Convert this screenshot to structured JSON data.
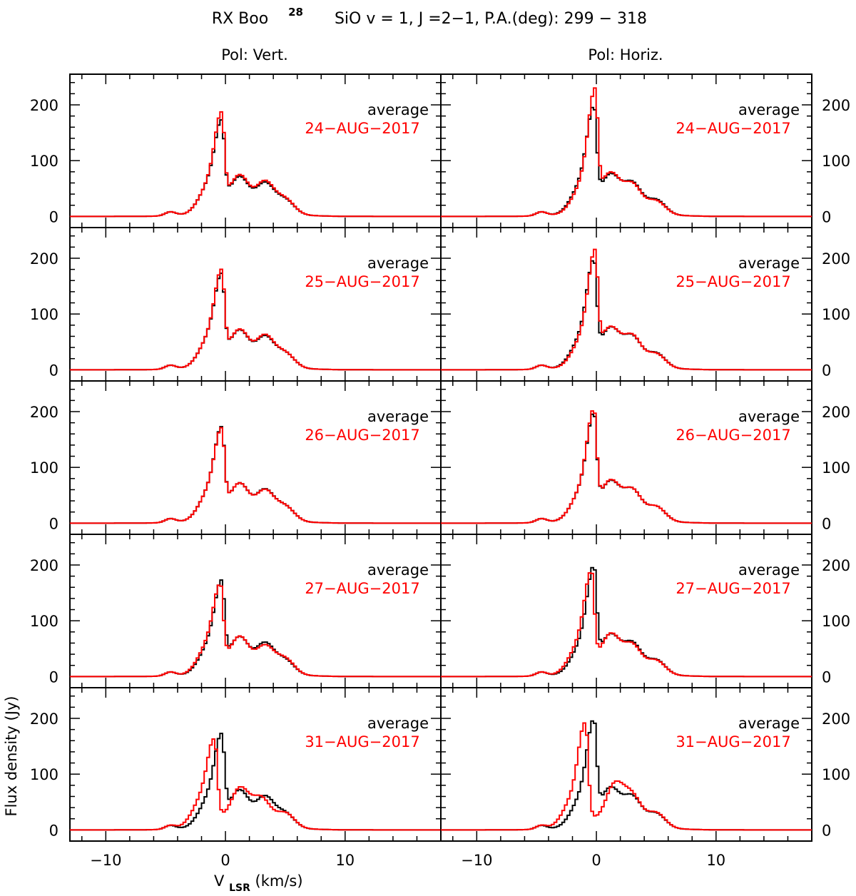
{
  "title": {
    "prefix": "RX Boo",
    "isotope": "28",
    "rest": "SiO v = 1, J =2−1, P.A.(deg): 299 − 318"
  },
  "column_titles": [
    "Pol: Vert.",
    "Pol: Horiz."
  ],
  "y_axis_label": "Flux density (Jy)",
  "x_axis_label": {
    "main": "V",
    "sub": "LSR",
    "unit": "(km/s)"
  },
  "colors": {
    "average": "#000000",
    "daily": "#ff0000"
  },
  "chart_data": {
    "type": "line",
    "layout": "grid 5 rows x 2 columns, shared axes",
    "xlim": [
      -13,
      18
    ],
    "ylim": [
      -20,
      255
    ],
    "x_ticks_labeled": [
      "−10",
      "0",
      "10"
    ],
    "y_ticks_labeled": [
      "0",
      "100",
      "200"
    ],
    "right_tick_labels_visible": [
      "0",
      "100",
      "200"
    ],
    "grid": false,
    "legend": "top-right text inside each panel",
    "panels": [
      {
        "column": "Pol: Vert.",
        "legend": [
          "average",
          "24-AUG-2017"
        ],
        "average": {
          "peak_x": -0.3,
          "peak_y": 178,
          "secondary": [
            [
              1.2,
              65
            ],
            [
              3.3,
              55
            ],
            [
              5.0,
              27
            ]
          ]
        },
        "daily": {
          "peak_x": -0.3,
          "peak_y": 192,
          "secondary": [
            [
              1.2,
              68
            ],
            [
              3.3,
              58
            ],
            [
              5.0,
              28
            ]
          ]
        }
      },
      {
        "column": "Pol: Horiz.",
        "legend": [
          "average",
          "24-AUG-2017"
        ],
        "average": {
          "peak_x": -0.2,
          "peak_y": 201,
          "secondary": [
            [
              1.2,
              68
            ],
            [
              3.0,
              55
            ],
            [
              5.0,
              27
            ]
          ]
        },
        "daily": {
          "peak_x": -0.1,
          "peak_y": 229,
          "secondary": [
            [
              1.2,
              70
            ],
            [
              3.0,
              53
            ],
            [
              5.0,
              25
            ]
          ]
        }
      },
      {
        "column": "Pol: Vert.",
        "legend": [
          "average",
          "25-AUG-2017"
        ],
        "average": {
          "peak_x": -0.3,
          "peak_y": 178,
          "secondary": [
            [
              1.2,
              65
            ],
            [
              3.3,
              55
            ],
            [
              5.0,
              27
            ]
          ]
        },
        "daily": {
          "peak_x": -0.3,
          "peak_y": 185,
          "secondary": [
            [
              1.2,
              66
            ],
            [
              3.3,
              57
            ],
            [
              5.0,
              27
            ]
          ]
        }
      },
      {
        "column": "Pol: Horiz.",
        "legend": [
          "average",
          "25-AUG-2017"
        ],
        "average": {
          "peak_x": -0.2,
          "peak_y": 201,
          "secondary": [
            [
              1.2,
              68
            ],
            [
              3.0,
              55
            ],
            [
              5.0,
              27
            ]
          ]
        },
        "daily": {
          "peak_x": -0.1,
          "peak_y": 215,
          "secondary": [
            [
              1.2,
              68
            ],
            [
              3.0,
              56
            ],
            [
              5.0,
              26
            ]
          ]
        }
      },
      {
        "column": "Pol: Vert.",
        "legend": [
          "average",
          "26-AUG-2017"
        ],
        "average": {
          "peak_x": -0.3,
          "peak_y": 178,
          "secondary": [
            [
              1.2,
              65
            ],
            [
              3.3,
              55
            ],
            [
              5.0,
              27
            ]
          ]
        },
        "daily": {
          "peak_x": -0.3,
          "peak_y": 176,
          "secondary": [
            [
              1.2,
              65
            ],
            [
              3.3,
              54
            ],
            [
              5.0,
              27
            ]
          ]
        }
      },
      {
        "column": "Pol: Horiz.",
        "legend": [
          "average",
          "26-AUG-2017"
        ],
        "average": {
          "peak_x": -0.2,
          "peak_y": 201,
          "secondary": [
            [
              1.2,
              68
            ],
            [
              3.0,
              55
            ],
            [
              5.0,
              27
            ]
          ]
        },
        "daily": {
          "peak_x": -0.2,
          "peak_y": 207,
          "secondary": [
            [
              1.2,
              69
            ],
            [
              3.0,
              55
            ],
            [
              5.0,
              27
            ]
          ]
        }
      },
      {
        "column": "Pol: Vert.",
        "legend": [
          "average",
          "27-AUG-2017"
        ],
        "average": {
          "peak_x": -0.3,
          "peak_y": 178,
          "secondary": [
            [
              1.2,
              65
            ],
            [
              3.3,
              55
            ],
            [
              5.0,
              27
            ]
          ]
        },
        "daily": {
          "peak_x": -0.4,
          "peak_y": 173,
          "secondary": [
            [
              1.2,
              66
            ],
            [
              3.3,
              50
            ],
            [
              5.0,
              29
            ]
          ]
        }
      },
      {
        "column": "Pol: Horiz.",
        "legend": [
          "average",
          "27-AUG-2017"
        ],
        "average": {
          "peak_x": -0.2,
          "peak_y": 201,
          "secondary": [
            [
              1.2,
              68
            ],
            [
              3.0,
              55
            ],
            [
              5.0,
              27
            ]
          ]
        },
        "daily": {
          "peak_x": -0.4,
          "peak_y": 196,
          "secondary": [
            [
              1.2,
              70
            ],
            [
              3.0,
              52
            ],
            [
              5.0,
              26
            ]
          ]
        }
      },
      {
        "column": "Pol: Vert.",
        "legend": [
          "average",
          "31-AUG-2017"
        ],
        "average": {
          "peak_x": -0.3,
          "peak_y": 178,
          "secondary": [
            [
              1.2,
              65
            ],
            [
              3.3,
              55
            ],
            [
              5.0,
              27
            ]
          ]
        },
        "daily": {
          "peak_x": -0.9,
          "peak_y": 175,
          "secondary": [
            [
              1.2,
              70
            ],
            [
              3.0,
              52
            ],
            [
              5.0,
              28
            ]
          ]
        }
      },
      {
        "column": "Pol: Horiz.",
        "legend": [
          "average",
          "31-AUG-2017"
        ],
        "average": {
          "peak_x": -0.2,
          "peak_y": 201,
          "secondary": [
            [
              1.2,
              68
            ],
            [
              3.0,
              55
            ],
            [
              5.0,
              27
            ]
          ]
        },
        "daily": {
          "peak_x": -0.9,
          "peak_y": 205,
          "secondary": [
            [
              1.5,
              75
            ],
            [
              3.0,
              55
            ],
            [
              5.0,
              28
            ]
          ]
        }
      }
    ]
  }
}
